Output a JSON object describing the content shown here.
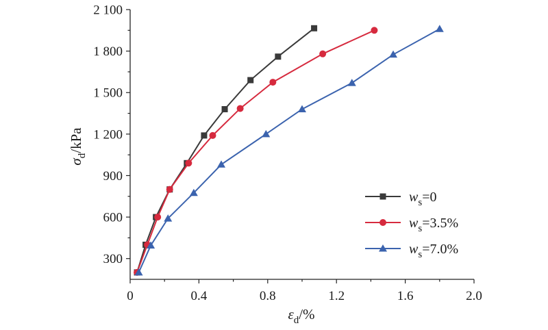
{
  "chart_data": {
    "type": "line",
    "title": "",
    "xlabel": {
      "main": "ε",
      "sub": "d",
      "unit": "/%"
    },
    "ylabel": {
      "main": "σ",
      "sub": "d",
      "unit": "/kPa"
    },
    "xlim": [
      0,
      2.0
    ],
    "ylim": [
      150,
      2100
    ],
    "xticks": [
      0,
      0.4,
      0.8,
      1.2,
      1.6,
      2.0
    ],
    "xtick_labels": [
      "0",
      "0.4",
      "0.8",
      "1.2",
      "1.6",
      "2.0"
    ],
    "yticks": [
      300,
      600,
      900,
      1200,
      1500,
      1800,
      2100
    ],
    "ytick_labels": [
      "300",
      "600",
      "900",
      "1 200",
      "1 500",
      "1 800",
      "2 100"
    ],
    "grid": false,
    "legend_position": "center-right",
    "series": [
      {
        "name": {
          "main": "w",
          "sub": "s",
          "rest": "=0"
        },
        "color": "#3a3a3a",
        "marker": "square",
        "x": [
          0.04,
          0.09,
          0.15,
          0.23,
          0.33,
          0.43,
          0.55,
          0.7,
          0.86,
          1.07
        ],
        "y": [
          200,
          400,
          600,
          800,
          990,
          1190,
          1380,
          1590,
          1760,
          1965
        ]
      },
      {
        "name": {
          "main": "w",
          "sub": "s",
          "rest": "=3.5%"
        },
        "color": "#d62a3e",
        "marker": "circle",
        "x": [
          0.04,
          0.1,
          0.16,
          0.23,
          0.34,
          0.48,
          0.64,
          0.83,
          1.12,
          1.42
        ],
        "y": [
          200,
          400,
          600,
          800,
          990,
          1190,
          1385,
          1575,
          1780,
          1950
        ]
      },
      {
        "name": {
          "main": "w",
          "sub": "s",
          "rest": "=7.0%"
        },
        "color": "#3b63ae",
        "marker": "triangle",
        "x": [
          0.05,
          0.12,
          0.22,
          0.37,
          0.53,
          0.79,
          1.0,
          1.29,
          1.53,
          1.8
        ],
        "y": [
          200,
          395,
          590,
          775,
          980,
          1200,
          1380,
          1570,
          1775,
          1960
        ]
      }
    ]
  }
}
